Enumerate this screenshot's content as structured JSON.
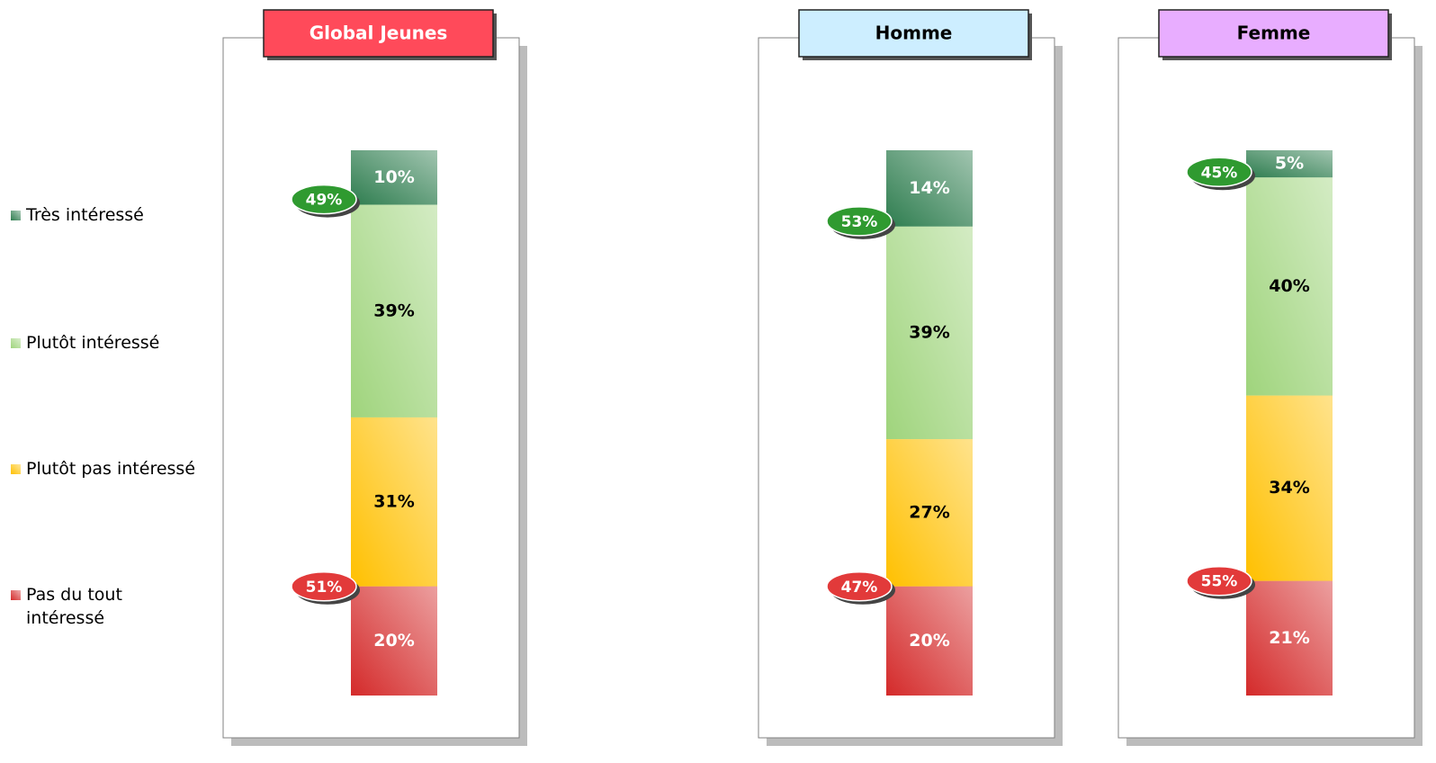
{
  "chart_data": {
    "type": "stacked-bar",
    "categories": [
      "Global Jeunes",
      "Homme",
      "Femme"
    ],
    "category_colors": [
      "#ff4a5a",
      "#cdeeff",
      "#e8adff"
    ],
    "category_text_colors": [
      "#ffffff",
      "#000000",
      "#000000"
    ],
    "series": [
      {
        "name": "Très intéressé",
        "color": "#2e7d4f",
        "label_color": "#ffffff",
        "values": [
          10,
          14,
          5
        ],
        "value_labels": [
          "10%",
          "14%",
          "5%"
        ]
      },
      {
        "name": "Plutôt intéressé",
        "color": "#9fd47c",
        "label_color": "#000000",
        "values": [
          39,
          39,
          40
        ],
        "value_labels": [
          "39%",
          "39%",
          "40%"
        ]
      },
      {
        "name": "Plutôt pas intéressé",
        "color": "#ffc000",
        "label_color": "#000000",
        "values": [
          31,
          27,
          34
        ],
        "value_labels": [
          "31%",
          "27%",
          "34%"
        ]
      },
      {
        "name": "Pas du tout intéressé",
        "color": "#d42a2a",
        "label_color": "#ffffff",
        "values": [
          20,
          20,
          21
        ],
        "value_labels": [
          "20%",
          "20%",
          "21%"
        ]
      }
    ],
    "interested_totals": {
      "color": "#2f9a30",
      "values": [
        49,
        53,
        45
      ],
      "value_labels": [
        "49%",
        "53%",
        "45%"
      ]
    },
    "not_interested_totals": {
      "color": "#e23a3a",
      "values": [
        51,
        47,
        55
      ],
      "value_labels": [
        "51%",
        "47%",
        "55%"
      ]
    }
  }
}
